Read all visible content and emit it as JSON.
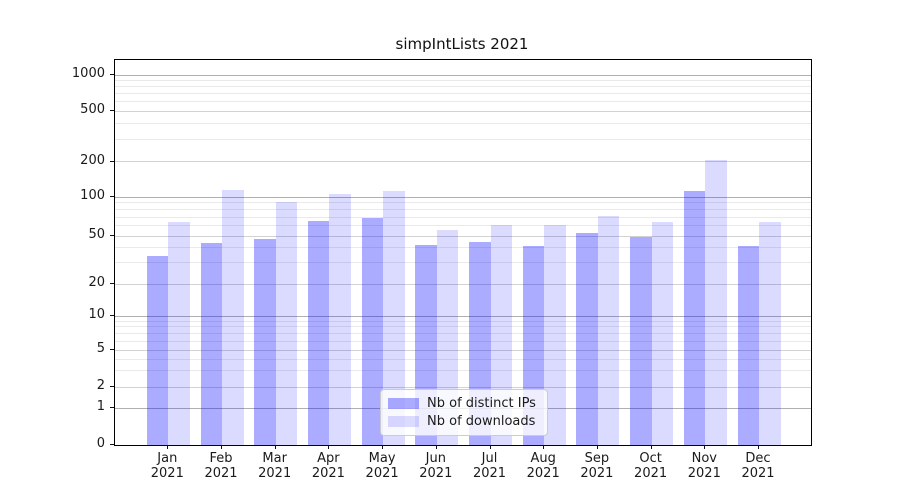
{
  "title": "simpIntLists 2021",
  "chart_data": {
    "type": "bar",
    "title": "simpIntLists 2021",
    "xlabel": "",
    "ylabel": "",
    "yscale": "symlog (log above 1, linear 0-1)",
    "ylim": [
      0,
      1300
    ],
    "grid": true,
    "legend_position": "lower center",
    "categories": [
      "Jan",
      "Feb",
      "Mar",
      "Apr",
      "May",
      "Jun",
      "Jul",
      "Aug",
      "Sep",
      "Oct",
      "Nov",
      "Dec"
    ],
    "category_year": "2021",
    "y_ticks": [
      0,
      1,
      2,
      5,
      10,
      20,
      50,
      100,
      200,
      500,
      1000
    ],
    "y_major_gridlines": [
      1,
      10,
      100,
      1000
    ],
    "y_mid_gridlines": [
      2,
      5,
      20,
      50,
      200,
      500
    ],
    "y_minor_gridlines": [
      3,
      4,
      6,
      7,
      8,
      9,
      30,
      40,
      60,
      70,
      80,
      90,
      300,
      400,
      600,
      700,
      800,
      900
    ],
    "series": [
      {
        "name": "Nb of distinct IPs",
        "color": "rgba(0,0,255,0.33)",
        "values": [
          34,
          44,
          47,
          65,
          69,
          42,
          45,
          41,
          53,
          49,
          112,
          41
        ]
      },
      {
        "name": "Nb of downloads",
        "color": "rgba(0,0,255,0.14)",
        "values": [
          64,
          114,
          92,
          106,
          112,
          56,
          61,
          61,
          71,
          64,
          207,
          64
        ]
      }
    ]
  },
  "colors": {
    "major_gridline": "#b0b0b0",
    "mid_gridline": "#d2d2d2",
    "minor_gridline": "#e9e9e9",
    "spine": "#000000",
    "text": "#1a1a1a"
  }
}
